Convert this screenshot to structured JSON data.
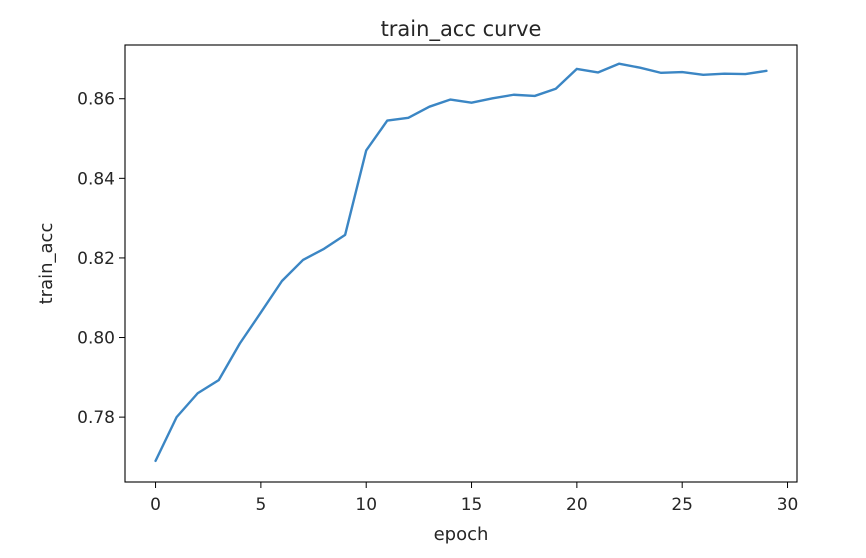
{
  "chart_data": {
    "type": "line",
    "title": "train_acc curve",
    "xlabel": "epoch",
    "ylabel": "train_acc",
    "xlim": [
      -1.45,
      30.45
    ],
    "ylim": [
      0.7637,
      0.8735
    ],
    "grid": false,
    "xticks": [
      0,
      5,
      10,
      15,
      20,
      25,
      30
    ],
    "xtick_labels": [
      "0",
      "5",
      "10",
      "15",
      "20",
      "25",
      "30"
    ],
    "yticks": [
      0.78,
      0.8,
      0.82,
      0.84,
      0.86
    ],
    "ytick_labels": [
      "0.78",
      "0.80",
      "0.82",
      "0.84",
      "0.86"
    ],
    "line_color": "#3b86c4",
    "series": [
      {
        "x": [
          0,
          1,
          2,
          3,
          4,
          5,
          6,
          7,
          8,
          9,
          10,
          11,
          12,
          13,
          14,
          15,
          16,
          17,
          18,
          19,
          20,
          21,
          22,
          23,
          24,
          25,
          26,
          27,
          28,
          29
        ],
        "values": [
          0.769,
          0.78,
          0.786,
          0.7893,
          0.7985,
          0.8063,
          0.8142,
          0.8195,
          0.8223,
          0.8258,
          0.847,
          0.8545,
          0.8552,
          0.858,
          0.8598,
          0.859,
          0.8601,
          0.861,
          0.8607,
          0.8625,
          0.8675,
          0.8666,
          0.8688,
          0.8678,
          0.8665,
          0.8667,
          0.866,
          0.8663,
          0.8662,
          0.867
        ]
      }
    ]
  }
}
